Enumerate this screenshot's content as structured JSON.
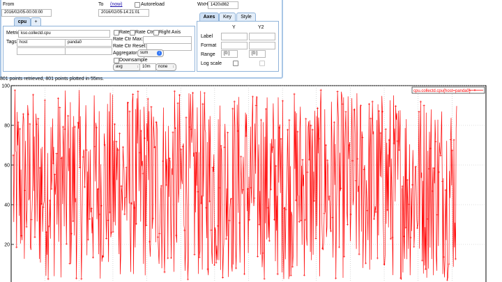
{
  "header": {
    "from_label": "From",
    "from_value": "2016/02/05-00:00:00",
    "to_label": "To",
    "now_link": "(now)",
    "to_value": "2016/02/05-14:21:01",
    "autoreload_label": "Autoreload",
    "wxh_label": "WxH:",
    "wxh_value": "1420x862"
  },
  "metric_tabs": [
    {
      "label": "cpu"
    },
    {
      "label": "+"
    }
  ],
  "metric_form": {
    "metric_label": "Metric:",
    "metric_value": "kso.collectd.cpu",
    "tags_label": "Tags",
    "tag_key": "host",
    "tag_value": "panda0",
    "rate_label": "Rate",
    "rate_ctr_label": "Rate Ctr",
    "right_axis_label": "Right Axis",
    "rate_ctr_max_label": "Rate Ctr Max:",
    "rate_ctr_reset_label": "Rate Ctr Reset:",
    "aggregator_label": "Aggregator:",
    "aggregator_value": "sum",
    "downsample_label": "Downsample",
    "ds_func": "avg",
    "ds_interval": "10m",
    "ds_fill": "none"
  },
  "axes_tabs": [
    {
      "label": "Axes"
    },
    {
      "label": "Key"
    },
    {
      "label": "Style"
    }
  ],
  "axes_form": {
    "col_y": "Y",
    "col_y2": "Y2",
    "label_row": "Label",
    "format_row": "Format",
    "range_row": "Range",
    "range_y": "[0:]",
    "range_y2": "[0:]",
    "logscale_row": "Log scale"
  },
  "status_text": "801 points retrieved, 801 points plotted in 55ms.",
  "chart_data": {
    "type": "line",
    "legend": "cpu.collectd.cpu{host=panda0}",
    "legend_position": "top-right",
    "ylim": [
      0,
      100
    ],
    "y_ticks": [
      "20",
      "40",
      "60",
      "80",
      "100"
    ],
    "series_color": "#ff0000",
    "n_points": 801,
    "seed": 12345,
    "value_min": 2,
    "value_max": 98
  }
}
